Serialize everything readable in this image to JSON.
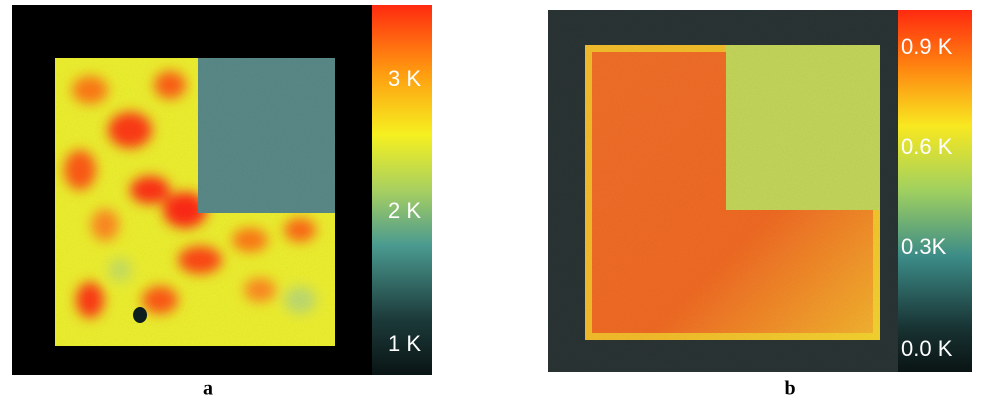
{
  "panels": [
    {
      "label": "a",
      "colorbar_ticks": [
        "3 K",
        "2 K",
        "1 K"
      ]
    },
    {
      "label": "b",
      "colorbar_ticks": [
        "0.9 K",
        "0.6 K",
        "0.3K",
        "0.0 K"
      ]
    }
  ]
}
